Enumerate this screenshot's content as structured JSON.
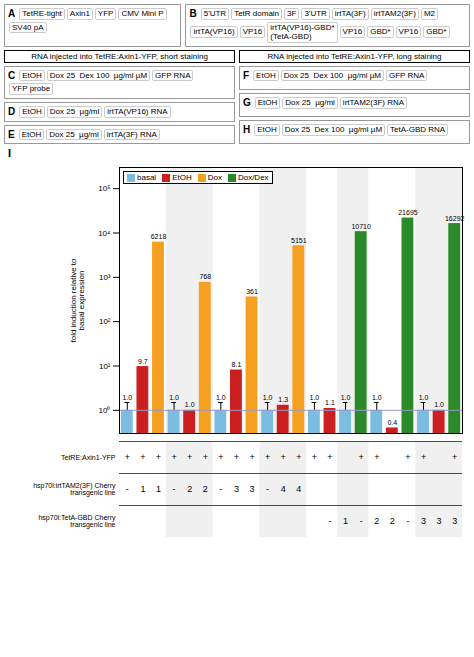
{
  "chart_data": {
    "type": "bar",
    "title": "I",
    "ylabel": "fold induction relative to\nbasal expression",
    "categories": [
      null,
      null,
      null,
      null,
      null,
      null,
      null,
      null,
      null,
      null,
      null,
      null,
      null,
      null,
      null,
      null,
      null,
      null,
      null,
      null,
      null,
      null
    ],
    "series": [
      {
        "name": "basal",
        "color": "#7bbde0",
        "values": [
          1.0,
          null,
          null,
          1.0,
          null,
          null,
          1.0,
          null,
          null,
          1.0,
          null,
          null,
          1.0,
          null,
          1.0,
          null,
          1.0,
          null,
          null,
          1.0,
          null,
          null
        ],
        "value_labels": [
          "1.0",
          null,
          null,
          "1.0",
          null,
          null,
          "1.0",
          null,
          null,
          "1.0",
          null,
          null,
          "1.0",
          null,
          "1.0",
          null,
          "1.0",
          null,
          null,
          "1.0",
          null,
          null
        ],
        "error_upper": [
          0.5,
          null,
          null,
          0.5,
          null,
          null,
          0.5,
          null,
          null,
          0.5,
          null,
          null,
          0.5,
          null,
          0.5,
          null,
          0.5,
          null,
          null,
          0.5,
          null,
          null
        ]
      },
      {
        "name": "EtOH",
        "color": "#cc2020",
        "values": [
          null,
          9.7,
          null,
          null,
          1.0,
          null,
          null,
          8.1,
          null,
          null,
          1.3,
          null,
          null,
          1.1,
          null,
          null,
          null,
          0.4,
          null,
          null,
          1.0,
          null
        ],
        "value_labels": [
          null,
          "9.7",
          null,
          null,
          "1.0",
          null,
          null,
          "8.1",
          null,
          null,
          "1.3",
          null,
          null,
          "1.1",
          null,
          null,
          null,
          "0.4",
          null,
          null,
          "1.0",
          null
        ]
      },
      {
        "name": "Dox",
        "color": "#f5a020",
        "values": [
          null,
          null,
          6218,
          null,
          null,
          768,
          null,
          null,
          361,
          null,
          null,
          5151,
          null,
          null,
          null,
          null,
          null,
          null,
          null,
          null,
          null,
          null
        ],
        "value_labels": [
          null,
          null,
          "6218",
          null,
          null,
          "768",
          null,
          null,
          "361",
          null,
          null,
          "5151",
          null,
          null,
          null,
          null,
          null,
          null,
          null,
          null,
          null,
          null
        ]
      },
      {
        "name": "Dox/Dex",
        "color": "#2a8a2a",
        "values": [
          null,
          null,
          null,
          null,
          null,
          null,
          null,
          null,
          null,
          null,
          null,
          null,
          null,
          null,
          null,
          10710,
          null,
          null,
          21695,
          null,
          null,
          16292
        ],
        "value_labels": [
          null,
          null,
          null,
          null,
          null,
          null,
          null,
          null,
          null,
          null,
          null,
          null,
          null,
          null,
          null,
          "10710",
          null,
          null,
          "21695",
          null,
          null,
          "16292"
        ]
      }
    ],
    "log": "y",
    "ylim": [
      0.3,
      300000
    ],
    "yticks": [
      {
        "value": 1,
        "label": "10⁰"
      },
      {
        "value": 10,
        "label": "10¹"
      },
      {
        "value": 100,
        "label": "10²"
      },
      {
        "value": 1000,
        "label": "10³"
      },
      {
        "value": 10000,
        "label": "10⁴"
      },
      {
        "value": 100000,
        "label": "10⁵"
      }
    ],
    "tick_labels": "y",
    "grid": false,
    "legend": "upper left",
    "data_labels": true,
    "hline": {
      "y": 1.0,
      "color": "#9999cc"
    },
    "table_rows": [
      {
        "label": "TetRE:Axin1-YFP",
        "cells": [
          "+",
          "+",
          "+",
          "+",
          "+",
          "+",
          "+",
          "+",
          "+",
          "+",
          "+",
          "+",
          "+",
          "+",
          null,
          "+",
          "+",
          null,
          "+",
          "+",
          null,
          "+"
        ]
      },
      {
        "label": "hsp70l:irtTAM2(3F) Cherry\ntransgenic line",
        "cells": [
          "-",
          "1",
          "1",
          "-",
          "2",
          "2",
          "-",
          "3",
          "3",
          "-",
          "4",
          "4",
          null,
          null,
          null,
          null,
          null,
          null,
          null,
          null,
          null,
          null
        ]
      },
      {
        "label": "hsp70l:TetA-GBD Cherry\ntransgenic line",
        "cells": [
          null,
          null,
          null,
          null,
          null,
          null,
          null,
          null,
          null,
          null,
          null,
          null,
          null,
          "-",
          "1",
          "-",
          "2",
          "2",
          "-",
          "3",
          "3",
          "3"
        ]
      }
    ],
    "annotations": [
      [
        "A",
        "TetRE-tight",
        "Axin1",
        "YFP",
        "CMV Mini P",
        "SV40 pA"
      ],
      [
        "B",
        "5'UTR",
        "TetR domain",
        "3F",
        "3'UTR",
        "irtTA(3F)",
        "irtTAM2(3F)",
        "M2",
        "irtTA(VP16)",
        "VP16",
        "irtTA(VP16)-GBD*\n(TetA-GBD)",
        "VP16",
        "GBD*",
        "VP16",
        "GBD*"
      ],
      [
        "RNA injected into TetRE:Axin1-YFP, short staining"
      ],
      [
        "RNA injected into TetRE:Axin1-YFP, long staining"
      ],
      [
        "C",
        "EtOH",
        "Dox 25  Dex 100  µg/ml µM",
        "GFP RNA",
        "YFP probe"
      ],
      [
        "D",
        "EtOH",
        "Dox 25  µg/ml",
        "irtTA(VP16) RNA"
      ],
      [
        "E",
        "EtOH",
        "Dox 25  µg/ml",
        "irtTA(3F) RNA"
      ],
      [
        "F",
        "EtOH",
        "Dox 25  Dex 100  µg/ml µM",
        "GFP RNA"
      ],
      [
        "G",
        "EtOH",
        "Dox 25  µg/ml",
        "irtTAM2(3F) RNA"
      ],
      [
        "H",
        "EtOH",
        "Dox 25  Dex 100  µg/ml µM",
        "TetA-GBD RNA"
      ]
    ]
  }
}
